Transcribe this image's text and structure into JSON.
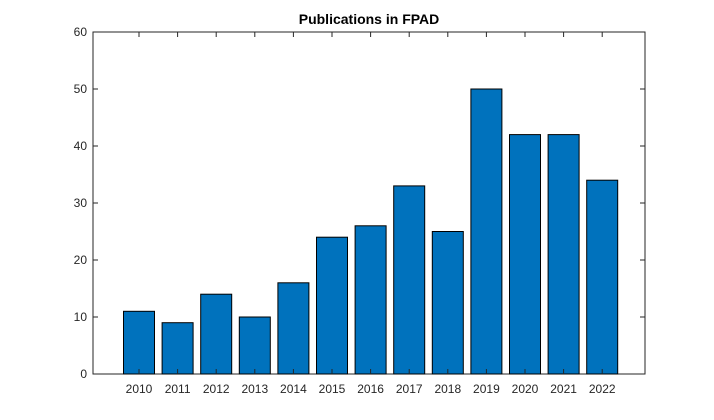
{
  "chart_data": {
    "type": "bar",
    "title": "Publications in FPAD",
    "xlabel": "",
    "ylabel": "",
    "categories": [
      "2010",
      "2011",
      "2012",
      "2013",
      "2014",
      "2015",
      "2016",
      "2017",
      "2018",
      "2019",
      "2020",
      "2021",
      "2022"
    ],
    "values": [
      11,
      9,
      14,
      10,
      16,
      24,
      26,
      33,
      25,
      50,
      42,
      42,
      34
    ],
    "ylim": [
      0,
      60
    ],
    "yticks": [
      0,
      10,
      20,
      30,
      40,
      50,
      60
    ],
    "grid": false,
    "legend": "none",
    "bar_color": "#0072BD",
    "edge_color": "#000000",
    "axis_color": "#262626"
  }
}
